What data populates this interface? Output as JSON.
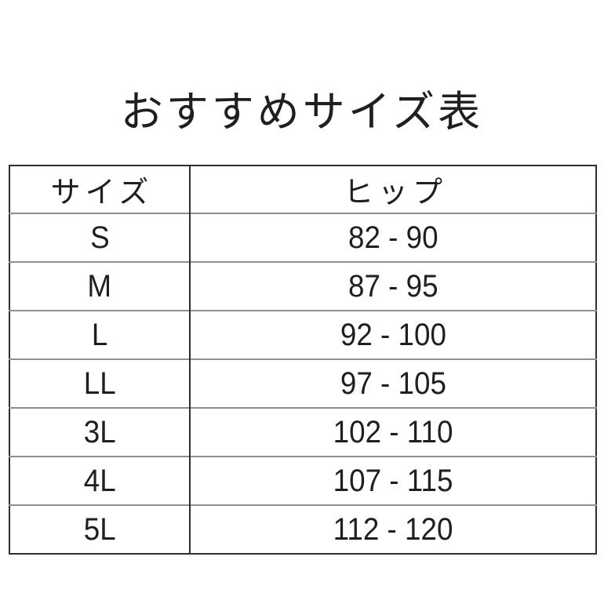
{
  "title": "おすすめサイズ表",
  "chart_data": {
    "type": "table",
    "title": "おすすめサイズ表",
    "columns": [
      "サイズ",
      "ヒップ"
    ],
    "rows": [
      [
        "S",
        "82 - 90"
      ],
      [
        "M",
        "87 - 95"
      ],
      [
        "L",
        "92 - 100"
      ],
      [
        "LL",
        "97 - 105"
      ],
      [
        "3L",
        "102 - 110"
      ],
      [
        "4L",
        "107 - 115"
      ],
      [
        "5L",
        "112 - 120"
      ]
    ]
  },
  "colors": {
    "background": "#ffffff",
    "text": "#1f1f1f",
    "outer_border": "#2e2e2e",
    "column_divider": "#2e2e2e",
    "row_divider": "#8f8f8f"
  }
}
